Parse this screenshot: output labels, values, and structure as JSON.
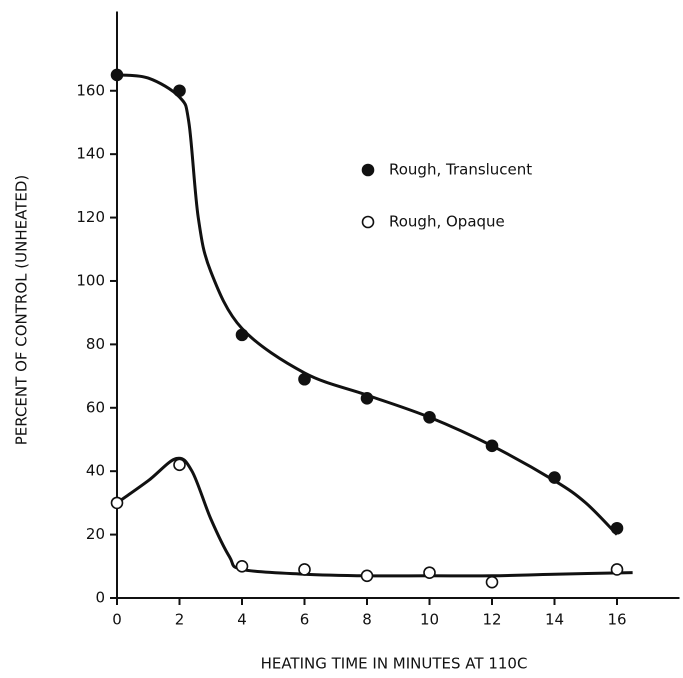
{
  "chart_data": {
    "type": "scatter",
    "xlabel": "HEATING TIME IN MINUTES AT 110C",
    "ylabel": "PERCENT OF CONTROL (UNHEATED)",
    "xlim": [
      0,
      18
    ],
    "ylim": [
      0,
      185
    ],
    "xticks": [
      0,
      2,
      4,
      6,
      8,
      10,
      12,
      14,
      16
    ],
    "yticks": [
      0,
      20,
      40,
      60,
      80,
      100,
      120,
      140,
      160
    ],
    "grid": false,
    "series": [
      {
        "name": "Rough, Translucent",
        "color": "#111111",
        "filled": true,
        "x": [
          0,
          2,
          4,
          6,
          8,
          10,
          12,
          14,
          16
        ],
        "values": [
          165,
          160,
          83,
          69,
          63,
          57,
          48,
          38,
          22
        ],
        "fit": {
          "x": [
            0,
            1,
            2,
            2.3,
            2.6,
            3,
            4,
            6,
            8,
            10,
            12,
            14,
            15,
            16
          ],
          "values": [
            165,
            164,
            158,
            150,
            120,
            103,
            85,
            71,
            64,
            57,
            48,
            37,
            30,
            20
          ]
        }
      },
      {
        "name": "Rough, Opaque",
        "color": "#111111",
        "filled": false,
        "x": [
          0,
          2,
          4,
          6,
          8,
          10,
          12,
          16
        ],
        "values": [
          30,
          42,
          10,
          9,
          7,
          8,
          5,
          9
        ],
        "fit": {
          "x": [
            0,
            1,
            1.9,
            2.4,
            3,
            3.6,
            4,
            6,
            8,
            10,
            12,
            14,
            16.5
          ],
          "values": [
            30,
            37,
            44,
            40,
            25,
            13,
            9,
            7.5,
            7,
            7,
            7,
            7.5,
            8
          ]
        }
      }
    ]
  }
}
